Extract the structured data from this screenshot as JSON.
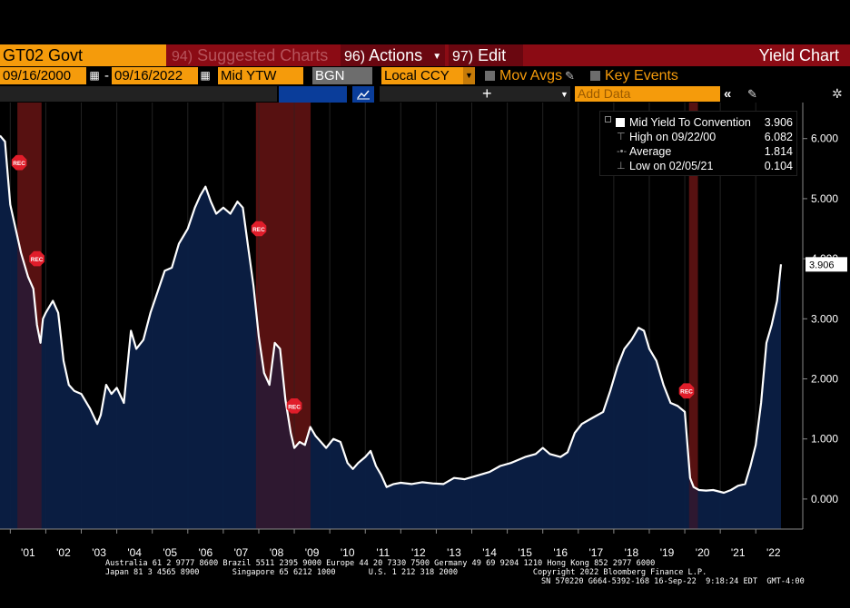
{
  "topbar": {
    "security": "GT02 Govt",
    "suggested_num": "94)",
    "suggested_label": "Suggested Charts",
    "actions_num": "96)",
    "actions_label": "Actions",
    "edit_num": "97)",
    "edit_label": "Edit",
    "title": "Yield Chart"
  },
  "controls": {
    "start_date": "09/16/2000",
    "end_date": "09/16/2022",
    "date_sep": "-",
    "field": "Mid YTW",
    "source": "BGN",
    "currency": "Local CCY",
    "mov_avgs": "Mov Avgs",
    "key_events": "Key Events",
    "add_data_placeholder": "Add Data"
  },
  "legend": {
    "rows": [
      {
        "icon": "square-icon",
        "label": "Mid Yield To Convention",
        "value": "3.906"
      },
      {
        "icon": "high-marker-icon",
        "label": "High on 09/22/00",
        "value": "6.082"
      },
      {
        "icon": "average-marker-icon",
        "label": "Average",
        "value": "1.814"
      },
      {
        "icon": "low-marker-icon",
        "label": "Low on 02/05/21",
        "value": "0.104"
      }
    ]
  },
  "last_value_label": "3.906",
  "recession_label": "REC",
  "colors": {
    "accent": "#f59b0b",
    "topbar": "#8b0b14",
    "area_fill": "#0b1f45",
    "recession": "#5a1414",
    "line": "#ffffff"
  },
  "chart_data": {
    "type": "area",
    "title": "",
    "series_name": "Mid Yield To Convention",
    "ylim": [
      -0.5,
      6.6
    ],
    "y_ticks": [
      "0.000",
      "1.000",
      "2.000",
      "3.000",
      "4.000",
      "5.000",
      "6.000"
    ],
    "y_tick_values": [
      0,
      1,
      2,
      3,
      4,
      5,
      6
    ],
    "x_tick_labels": [
      "'01",
      "'02",
      "'03",
      "'04",
      "'05",
      "'06",
      "'07",
      "'08",
      "'09",
      "'10",
      "'11",
      "'12",
      "'13",
      "'14",
      "'15",
      "'16",
      "'17",
      "'18",
      "'19",
      "'20",
      "'21",
      "'22"
    ],
    "x_tick_years": [
      2001,
      2002,
      2003,
      2004,
      2005,
      2006,
      2007,
      2008,
      2009,
      2010,
      2011,
      2012,
      2013,
      2014,
      2015,
      2016,
      2017,
      2018,
      2019,
      2020,
      2021,
      2022
    ],
    "xlim": [
      2000.71,
      2022.71
    ],
    "recessions": [
      [
        2001.2,
        2001.88
      ],
      [
        2007.92,
        2009.46
      ],
      [
        2020.12,
        2020.37
      ]
    ],
    "points": [
      [
        2000.71,
        6.05
      ],
      [
        2000.85,
        5.95
      ],
      [
        2001.0,
        4.9
      ],
      [
        2001.15,
        4.5
      ],
      [
        2001.3,
        4.1
      ],
      [
        2001.5,
        3.7
      ],
      [
        2001.65,
        3.5
      ],
      [
        2001.75,
        2.9
      ],
      [
        2001.85,
        2.6
      ],
      [
        2001.92,
        3.0
      ],
      [
        2002.0,
        3.1
      ],
      [
        2002.2,
        3.3
      ],
      [
        2002.35,
        3.1
      ],
      [
        2002.5,
        2.3
      ],
      [
        2002.65,
        1.9
      ],
      [
        2002.8,
        1.8
      ],
      [
        2003.0,
        1.75
      ],
      [
        2003.25,
        1.5
      ],
      [
        2003.45,
        1.25
      ],
      [
        2003.55,
        1.4
      ],
      [
        2003.7,
        1.9
      ],
      [
        2003.85,
        1.75
      ],
      [
        2004.0,
        1.85
      ],
      [
        2004.2,
        1.6
      ],
      [
        2004.4,
        2.8
      ],
      [
        2004.55,
        2.5
      ],
      [
        2004.75,
        2.65
      ],
      [
        2004.95,
        3.1
      ],
      [
        2005.15,
        3.45
      ],
      [
        2005.35,
        3.8
      ],
      [
        2005.55,
        3.85
      ],
      [
        2005.75,
        4.25
      ],
      [
        2006.0,
        4.5
      ],
      [
        2006.2,
        4.85
      ],
      [
        2006.35,
        5.05
      ],
      [
        2006.5,
        5.2
      ],
      [
        2006.65,
        4.95
      ],
      [
        2006.8,
        4.75
      ],
      [
        2007.0,
        4.85
      ],
      [
        2007.2,
        4.75
      ],
      [
        2007.4,
        4.95
      ],
      [
        2007.55,
        4.85
      ],
      [
        2007.7,
        4.2
      ],
      [
        2007.85,
        3.55
      ],
      [
        2008.0,
        2.7
      ],
      [
        2008.15,
        2.1
      ],
      [
        2008.3,
        1.9
      ],
      [
        2008.45,
        2.6
      ],
      [
        2008.6,
        2.5
      ],
      [
        2008.75,
        1.65
      ],
      [
        2008.9,
        1.1
      ],
      [
        2009.0,
        0.85
      ],
      [
        2009.15,
        0.95
      ],
      [
        2009.3,
        0.9
      ],
      [
        2009.45,
        1.2
      ],
      [
        2009.6,
        1.05
      ],
      [
        2009.75,
        0.95
      ],
      [
        2009.9,
        0.85
      ],
      [
        2010.1,
        1.0
      ],
      [
        2010.3,
        0.95
      ],
      [
        2010.5,
        0.6
      ],
      [
        2010.65,
        0.5
      ],
      [
        2010.8,
        0.6
      ],
      [
        2011.0,
        0.7
      ],
      [
        2011.15,
        0.8
      ],
      [
        2011.3,
        0.55
      ],
      [
        2011.45,
        0.4
      ],
      [
        2011.6,
        0.2
      ],
      [
        2011.8,
        0.25
      ],
      [
        2012.0,
        0.27
      ],
      [
        2012.3,
        0.25
      ],
      [
        2012.6,
        0.28
      ],
      [
        2012.9,
        0.26
      ],
      [
        2013.2,
        0.25
      ],
      [
        2013.5,
        0.35
      ],
      [
        2013.8,
        0.33
      ],
      [
        2014.1,
        0.38
      ],
      [
        2014.5,
        0.45
      ],
      [
        2014.8,
        0.55
      ],
      [
        2015.1,
        0.6
      ],
      [
        2015.5,
        0.7
      ],
      [
        2015.8,
        0.75
      ],
      [
        2016.0,
        0.85
      ],
      [
        2016.2,
        0.75
      ],
      [
        2016.5,
        0.7
      ],
      [
        2016.7,
        0.78
      ],
      [
        2016.9,
        1.1
      ],
      [
        2017.1,
        1.25
      ],
      [
        2017.4,
        1.35
      ],
      [
        2017.7,
        1.45
      ],
      [
        2017.9,
        1.8
      ],
      [
        2018.1,
        2.2
      ],
      [
        2018.3,
        2.5
      ],
      [
        2018.5,
        2.65
      ],
      [
        2018.7,
        2.85
      ],
      [
        2018.85,
        2.8
      ],
      [
        2019.0,
        2.5
      ],
      [
        2019.2,
        2.3
      ],
      [
        2019.4,
        1.9
      ],
      [
        2019.6,
        1.6
      ],
      [
        2019.8,
        1.55
      ],
      [
        2020.0,
        1.45
      ],
      [
        2020.15,
        0.35
      ],
      [
        2020.25,
        0.2
      ],
      [
        2020.4,
        0.15
      ],
      [
        2020.6,
        0.14
      ],
      [
        2020.8,
        0.15
      ],
      [
        2021.0,
        0.12
      ],
      [
        2021.1,
        0.104
      ],
      [
        2021.3,
        0.15
      ],
      [
        2021.5,
        0.22
      ],
      [
        2021.7,
        0.25
      ],
      [
        2021.85,
        0.55
      ],
      [
        2022.0,
        0.9
      ],
      [
        2022.15,
        1.6
      ],
      [
        2022.3,
        2.6
      ],
      [
        2022.45,
        2.9
      ],
      [
        2022.6,
        3.3
      ],
      [
        2022.71,
        3.906
      ]
    ]
  },
  "footer": {
    "line1": "Australia 61 2 9777 8600 Brazil 5511 2395 9000 Europe 44 20 7330 7500 Germany 49 69 9204 1210 Hong Kong 852 2977 6000",
    "line2": "Japan 81 3 4565 8900       Singapore 65 6212 1000       U.S. 1 212 318 2000                Copyright 2022 Bloomberg Finance L.P.",
    "line3": "SN 570220 G664-5392-168 16-Sep-22  9:18:24 EDT  GMT-4:00"
  }
}
